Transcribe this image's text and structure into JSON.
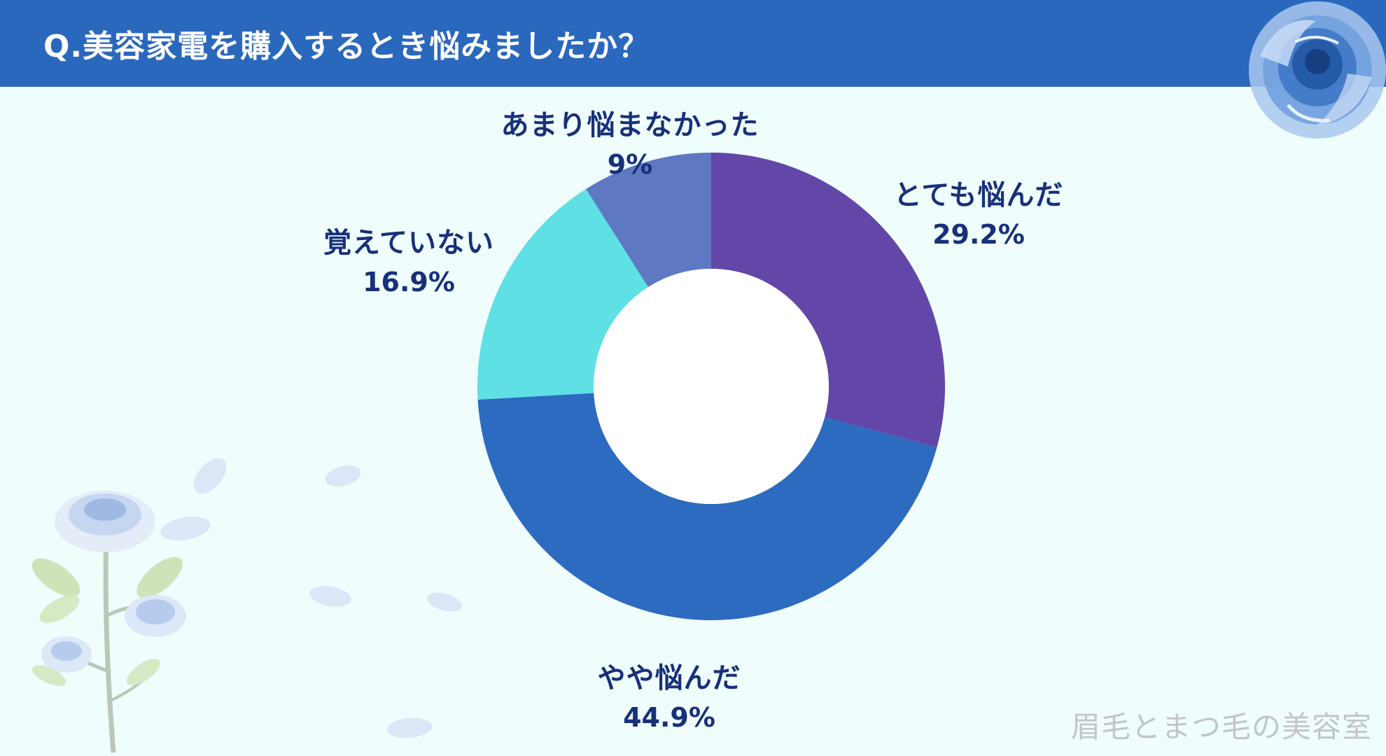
{
  "header": {
    "title": "Q.美容家電を購入するとき悩みましたか？"
  },
  "chart_data": {
    "type": "pie",
    "style": "donut",
    "title": "Q.美容家電を購入するとき悩みましたか？",
    "slices": [
      {
        "label": "とても悩んだ",
        "value": 29.2,
        "value_label": "29.2%",
        "color": "#6247a8"
      },
      {
        "label": "やや悩んだ",
        "value": 44.9,
        "value_label": "44.9%",
        "color": "#2c6bbf"
      },
      {
        "label": "覚えていない",
        "value": 16.9,
        "value_label": "16.9%",
        "color": "#5ee0e4"
      },
      {
        "label": "あまり悩まなかった",
        "value": 9,
        "value_label": "9%",
        "color": "#5f78c2"
      }
    ],
    "start_angle": "12 o'clock",
    "direction": "clockwise",
    "legend": "none"
  },
  "watermark": {
    "text": "眉毛とまつ毛の美容室"
  },
  "decorations": {
    "top_right": "blue-rose-icon",
    "bottom_left": "blue-rose-branch-icon",
    "petals": "petal-icon"
  },
  "colors": {
    "background": "#f0fdfd",
    "header": "#2a68bd",
    "header_text": "#ffffff",
    "label_text": "#17307a",
    "watermark": "#c2c6c6"
  }
}
